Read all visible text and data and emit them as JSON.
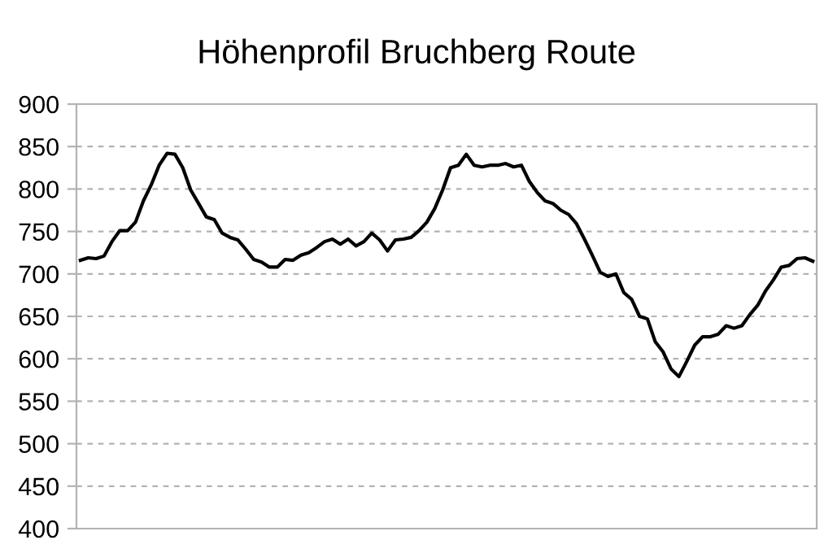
{
  "chart_data": {
    "type": "line",
    "title": "Höhenprofil Bruchberg Route",
    "categories": [
      null,
      null,
      null,
      null,
      null,
      null,
      null,
      null,
      null,
      null,
      null,
      null,
      null,
      null,
      null,
      null,
      null,
      null,
      null,
      null,
      null,
      null,
      null,
      null,
      null,
      null,
      null,
      null,
      null,
      null,
      null,
      null,
      null,
      null,
      null,
      null,
      null,
      null,
      null,
      null,
      null,
      null,
      null,
      null,
      null,
      null,
      null,
      null,
      null,
      null,
      null,
      null,
      null,
      null,
      null,
      null,
      null,
      null,
      null,
      null,
      null,
      null,
      null,
      null,
      null,
      null,
      null,
      null,
      null,
      null,
      null,
      null,
      null,
      null,
      null,
      null,
      null,
      null,
      null,
      null,
      null,
      null,
      null,
      null,
      null,
      null,
      null,
      null,
      null,
      null,
      null,
      null,
      null,
      null
    ],
    "series": [
      {
        "color": "#000000",
        "values": [
          716,
          719,
          718,
          721,
          738,
          751,
          751,
          761,
          786,
          805,
          828,
          842,
          841,
          825,
          799,
          783,
          767,
          764,
          748,
          743,
          740,
          729,
          717,
          714,
          708,
          708,
          717,
          716,
          722,
          725,
          731,
          738,
          741,
          735,
          741,
          733,
          738,
          748,
          740,
          727,
          740,
          741,
          743,
          751,
          761,
          777,
          799,
          825,
          828,
          841,
          828,
          826,
          828,
          828,
          830,
          826,
          828,
          809,
          796,
          786,
          783,
          775,
          770,
          759,
          741,
          722,
          702,
          697,
          700,
          678,
          670,
          650,
          647,
          620,
          608,
          588,
          579,
          597,
          616,
          626,
          626,
          629,
          639,
          636,
          639,
          652,
          663,
          680,
          693,
          708,
          710,
          718,
          719,
          715
        ]
      }
    ],
    "ylim": [
      400,
      900
    ],
    "yticks": [
      400,
      450,
      500,
      550,
      600,
      650,
      700,
      750,
      800,
      850,
      900
    ],
    "grid": "y",
    "marker": "none",
    "line_style": "solid",
    "legend": false
  }
}
